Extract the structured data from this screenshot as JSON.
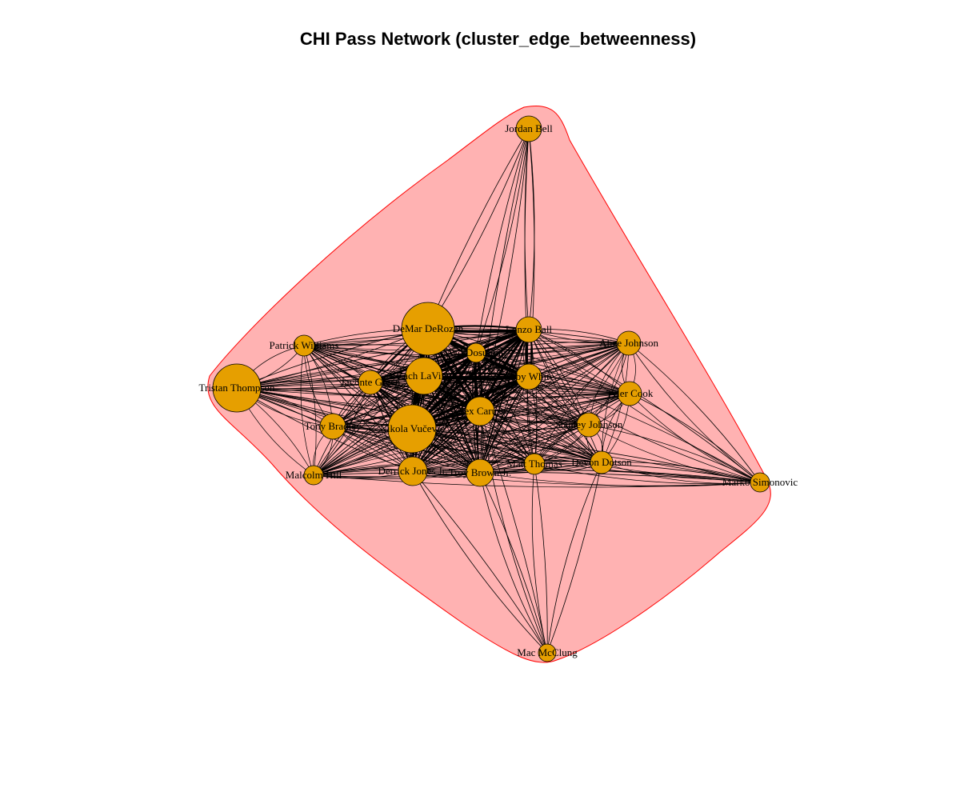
{
  "title": "CHI Pass Network (cluster_edge_betweenness)",
  "colors": {
    "node_fill": "#E69F00",
    "node_stroke": "#000000",
    "hull_fill": "#FFB2B2",
    "hull_stroke": "#FF0000",
    "edge": "#000000",
    "background": "#FFFFFF"
  },
  "nodes": [
    {
      "id": "jordan_bell",
      "label": "Jordan Bell",
      "size": 1
    },
    {
      "id": "demar_derozan",
      "label": "DeMar DeRozan",
      "size": 5
    },
    {
      "id": "lonzo_ball",
      "label": "Lonzo Ball",
      "size": 2
    },
    {
      "id": "alize_johnson",
      "label": "Alize Johnson",
      "size": 1
    },
    {
      "id": "patrick_williams",
      "label": "Patrick Williams",
      "size": 1
    },
    {
      "id": "ayo_dosunmu",
      "label": "Ayo Dosunmu",
      "size": 1
    },
    {
      "id": "zach_lavine",
      "label": "Zach LaVine",
      "size": 3
    },
    {
      "id": "coby_white",
      "label": "Coby White",
      "size": 2
    },
    {
      "id": "tristan_thompson",
      "label": "Tristan Thompson",
      "size": 4
    },
    {
      "id": "javonte_green",
      "label": "Javonte Green",
      "size": 1
    },
    {
      "id": "tyler_cook",
      "label": "Tyler Cook",
      "size": 1
    },
    {
      "id": "alex_caruso",
      "label": "Alex Caruso",
      "size": 2
    },
    {
      "id": "tony_bradley",
      "label": "Tony Bradley",
      "size": 1
    },
    {
      "id": "nikola_vucevic",
      "label": "Nikola Vučević",
      "size": 5
    },
    {
      "id": "stanley_johnson",
      "label": "Stanley Johnson",
      "size": 1
    },
    {
      "id": "derrick_jones_jr",
      "label": "Derrick Jones Jr.",
      "size": 2
    },
    {
      "id": "troy_brown_jr",
      "label": "Troy Brown Jr.",
      "size": 2
    },
    {
      "id": "matt_thomas",
      "label": "Matt Thomas",
      "size": 1
    },
    {
      "id": "devon_dotson",
      "label": "Devon Dotson",
      "size": 1
    },
    {
      "id": "malcolm_hill",
      "label": "Malcolm Hill",
      "size": 1
    },
    {
      "id": "marko_simonovic",
      "label": "Marko Simonovic",
      "size": 1
    },
    {
      "id": "mac_mcclung",
      "label": "Mac McClung",
      "size": 1
    }
  ]
}
